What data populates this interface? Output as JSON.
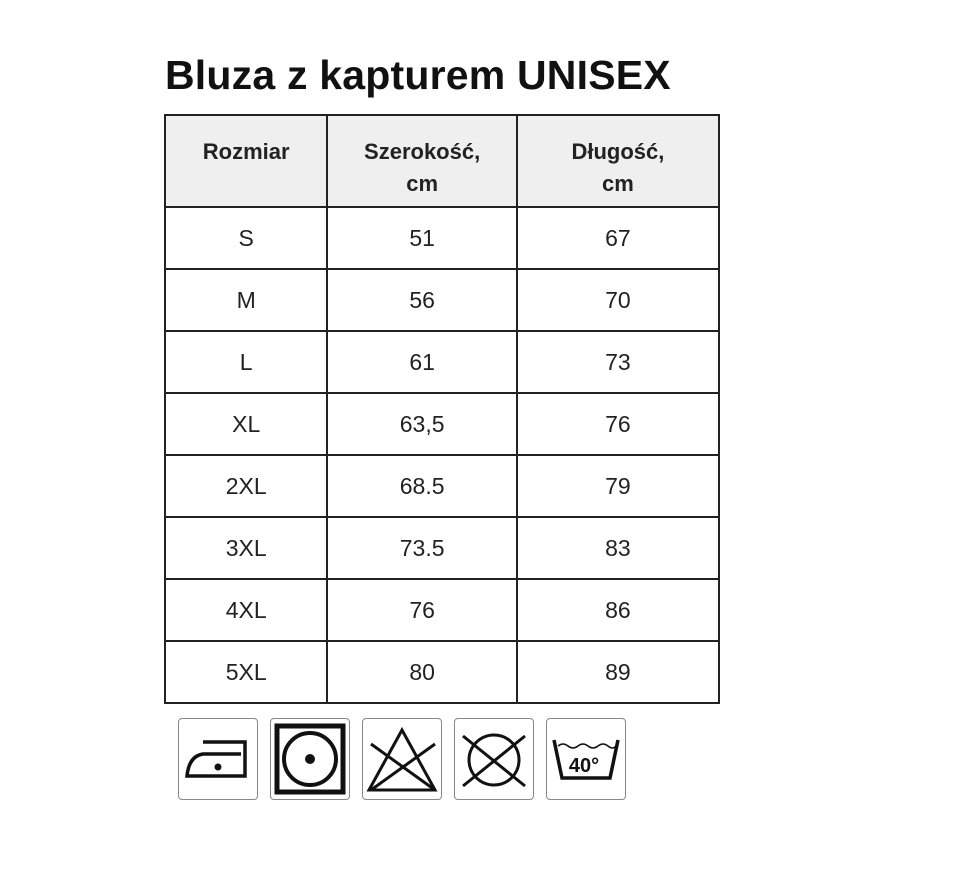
{
  "title": "Bluza z kapturem UNISEX",
  "table": {
    "headers": [
      [
        "Rozmiar"
      ],
      [
        "Szerokość,",
        "cm"
      ],
      [
        "Długość,",
        "cm"
      ]
    ],
    "rows": [
      [
        "S",
        "51",
        "67"
      ],
      [
        "M",
        "56",
        "70"
      ],
      [
        "L",
        "61",
        "73"
      ],
      [
        "XL",
        "63,5",
        "76"
      ],
      [
        "2XL",
        "68.5",
        "79"
      ],
      [
        "3XL",
        "73.5",
        "83"
      ],
      [
        "4XL",
        "76",
        "86"
      ],
      [
        "5XL",
        "80",
        "89"
      ]
    ]
  },
  "care_icons": [
    {
      "name": "iron-low-temperature-icon"
    },
    {
      "name": "tumble-dry-icon"
    },
    {
      "name": "do-not-bleach-icon"
    },
    {
      "name": "do-not-dry-clean-icon"
    },
    {
      "name": "wash-40-icon",
      "label": "40°"
    }
  ]
}
